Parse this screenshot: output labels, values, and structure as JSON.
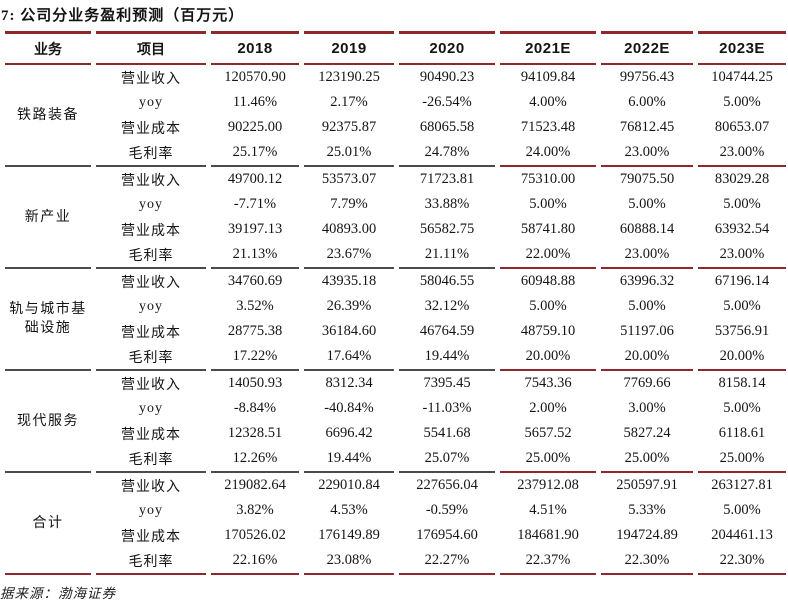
{
  "title": "7: 公司分业务盈利预测（百万元）",
  "source_note": "据来源：渤海证券",
  "colors": {
    "accent_red": "#8f282c",
    "separator_dark": "#4b4b4b"
  },
  "table": {
    "headers": [
      "业务",
      "项目",
      "2018",
      "2019",
      "2020",
      "2021E",
      "2022E",
      "2023E"
    ],
    "forecast_columns_start_index": 3,
    "groups": [
      {
        "name": "铁路装备",
        "rows": [
          {
            "label": "营业收入",
            "values": [
              "120570.90",
              "123190.25",
              "90490.23",
              "94109.84",
              "99756.43",
              "104744.25"
            ]
          },
          {
            "label": "yoy",
            "values": [
              "11.46%",
              "2.17%",
              "-26.54%",
              "4.00%",
              "6.00%",
              "5.00%"
            ]
          },
          {
            "label": "营业成本",
            "values": [
              "90225.00",
              "92375.87",
              "68065.58",
              "71523.48",
              "76812.45",
              "80653.07"
            ]
          },
          {
            "label": "毛利率",
            "values": [
              "25.17%",
              "25.01%",
              "24.78%",
              "24.00%",
              "23.00%",
              "23.00%"
            ]
          }
        ]
      },
      {
        "name": "新产业",
        "rows": [
          {
            "label": "营业收入",
            "values": [
              "49700.12",
              "53573.07",
              "71723.81",
              "75310.00",
              "79075.50",
              "83029.28"
            ]
          },
          {
            "label": "yoy",
            "values": [
              "-7.71%",
              "7.79%",
              "33.88%",
              "5.00%",
              "5.00%",
              "5.00%"
            ]
          },
          {
            "label": "营业成本",
            "values": [
              "39197.13",
              "40893.00",
              "56582.75",
              "58741.80",
              "60888.14",
              "63932.54"
            ]
          },
          {
            "label": "毛利率",
            "values": [
              "21.13%",
              "23.67%",
              "21.11%",
              "22.00%",
              "23.00%",
              "23.00%"
            ]
          }
        ]
      },
      {
        "name": "轨与城市基础设施",
        "rows": [
          {
            "label": "营业收入",
            "values": [
              "34760.69",
              "43935.18",
              "58046.55",
              "60948.88",
              "63996.32",
              "67196.14"
            ]
          },
          {
            "label": "yoy",
            "values": [
              "3.52%",
              "26.39%",
              "32.12%",
              "5.00%",
              "5.00%",
              "5.00%"
            ]
          },
          {
            "label": "营业成本",
            "values": [
              "28775.38",
              "36184.60",
              "46764.59",
              "48759.10",
              "51197.06",
              "53756.91"
            ]
          },
          {
            "label": "毛利率",
            "values": [
              "17.22%",
              "17.64%",
              "19.44%",
              "20.00%",
              "20.00%",
              "20.00%"
            ]
          }
        ]
      },
      {
        "name": "现代服务",
        "rows": [
          {
            "label": "营业收入",
            "values": [
              "14050.93",
              "8312.34",
              "7395.45",
              "7543.36",
              "7769.66",
              "8158.14"
            ]
          },
          {
            "label": "yoy",
            "values": [
              "-8.84%",
              "-40.84%",
              "-11.03%",
              "2.00%",
              "3.00%",
              "5.00%"
            ]
          },
          {
            "label": "营业成本",
            "values": [
              "12328.51",
              "6696.42",
              "5541.68",
              "5657.52",
              "5827.24",
              "6118.61"
            ]
          },
          {
            "label": "毛利率",
            "values": [
              "12.26%",
              "19.44%",
              "25.07%",
              "25.00%",
              "25.00%",
              "25.00%"
            ]
          }
        ]
      },
      {
        "name": "合计",
        "rows": [
          {
            "label": "营业收入",
            "values": [
              "219082.64",
              "229010.84",
              "227656.04",
              "237912.08",
              "250597.91",
              "263127.81"
            ]
          },
          {
            "label": "yoy",
            "values": [
              "3.82%",
              "4.53%",
              "-0.59%",
              "4.51%",
              "5.33%",
              "5.00%"
            ]
          },
          {
            "label": "营业成本",
            "values": [
              "170526.02",
              "176149.89",
              "176954.60",
              "184681.90",
              "194724.89",
              "204461.13"
            ]
          },
          {
            "label": "毛利率",
            "values": [
              "22.16%",
              "23.08%",
              "22.27%",
              "22.37%",
              "22.30%",
              "22.30%"
            ]
          }
        ]
      }
    ]
  }
}
